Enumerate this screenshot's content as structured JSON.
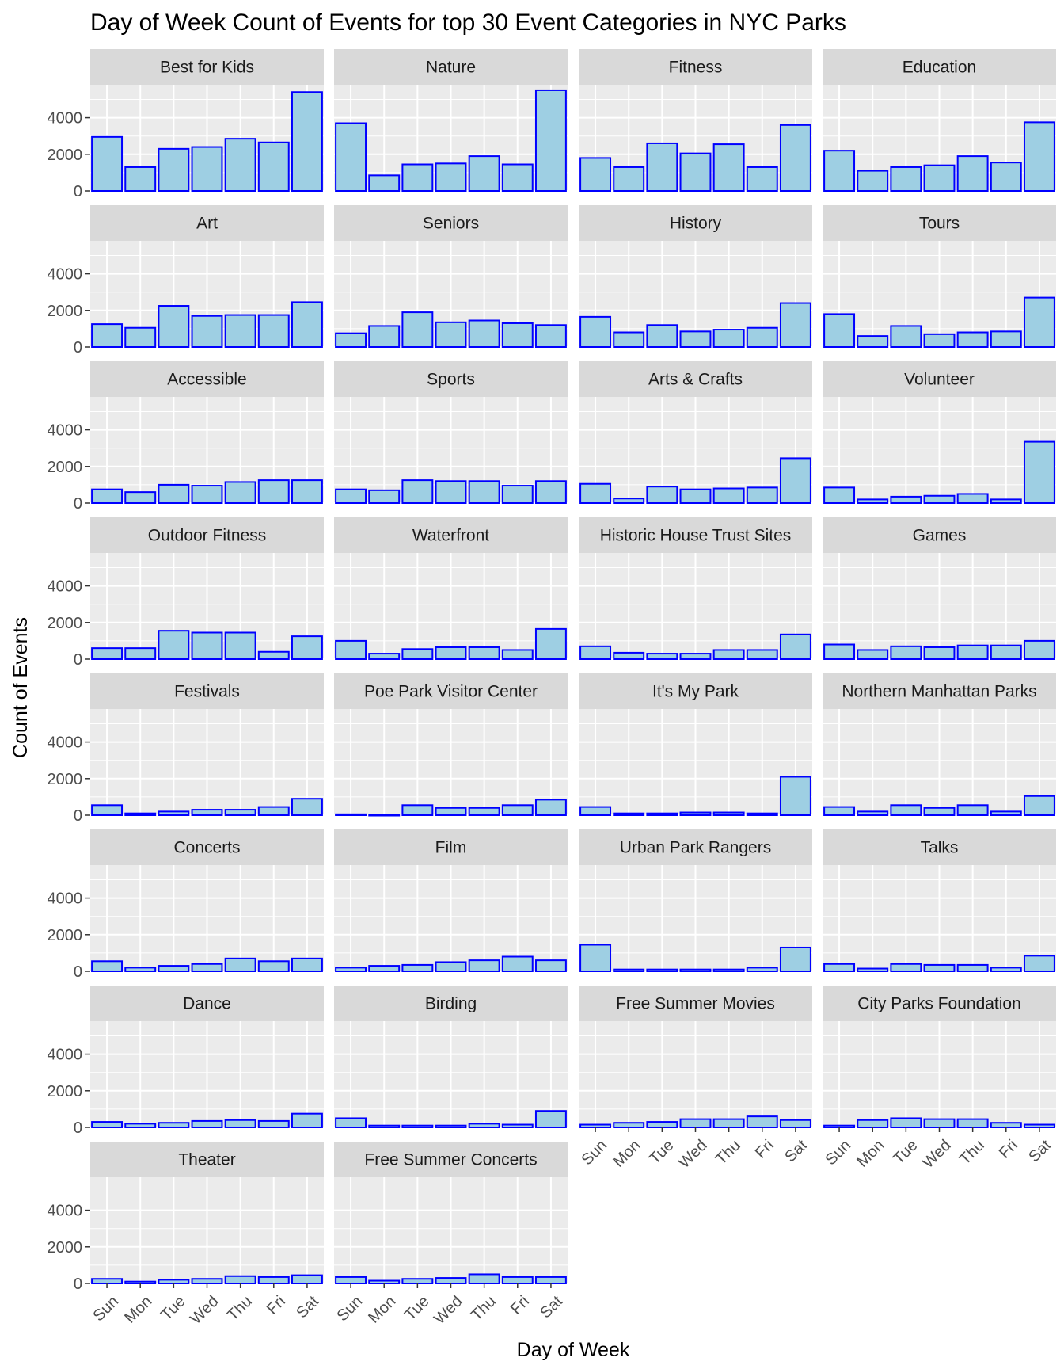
{
  "colors": {
    "panel_bg": "#EBEBEB",
    "grid": "#FFFFFF",
    "strip_bg": "#D9D9D9",
    "bar_fill": "#9ECFE3",
    "bar_outline": "#0000FF",
    "tick_text": "#4D4D4D"
  },
  "chart_data": {
    "type": "bar",
    "faceted": true,
    "facet_columns": 4,
    "title": "Day of Week Count of Events for top 30 Event Categories in NYC Parks",
    "xlabel": "Day of Week",
    "ylabel": "Count of Events",
    "categories": [
      "Sun",
      "Mon",
      "Tue",
      "Wed",
      "Thu",
      "Fri",
      "Sat"
    ],
    "ylim": [
      0,
      5800
    ],
    "yticks": [
      0,
      2000,
      4000
    ],
    "grid": true,
    "facets": [
      {
        "name": "Best for Kids",
        "values": [
          2950,
          1300,
          2300,
          2400,
          2850,
          2650,
          5400
        ]
      },
      {
        "name": "Nature",
        "values": [
          3700,
          850,
          1450,
          1500,
          1900,
          1450,
          5500
        ]
      },
      {
        "name": "Fitness",
        "values": [
          1800,
          1300,
          2600,
          2050,
          2550,
          1300,
          3600
        ]
      },
      {
        "name": "Education",
        "values": [
          2200,
          1100,
          1300,
          1400,
          1900,
          1550,
          3750
        ]
      },
      {
        "name": "Art",
        "values": [
          1250,
          1050,
          2250,
          1700,
          1750,
          1750,
          2450
        ]
      },
      {
        "name": "Seniors",
        "values": [
          750,
          1150,
          1900,
          1350,
          1450,
          1300,
          1200
        ]
      },
      {
        "name": "History",
        "values": [
          1650,
          800,
          1200,
          850,
          950,
          1050,
          2400
        ]
      },
      {
        "name": "Tours",
        "values": [
          1800,
          600,
          1150,
          700,
          800,
          850,
          2700
        ]
      },
      {
        "name": "Accessible",
        "values": [
          750,
          600,
          1000,
          950,
          1150,
          1250,
          1250
        ]
      },
      {
        "name": "Sports",
        "values": [
          750,
          700,
          1250,
          1200,
          1200,
          950,
          1200
        ]
      },
      {
        "name": "Arts & Crafts",
        "values": [
          1050,
          250,
          900,
          750,
          800,
          850,
          2450
        ]
      },
      {
        "name": "Volunteer",
        "values": [
          850,
          200,
          350,
          400,
          500,
          200,
          3350
        ]
      },
      {
        "name": "Outdoor Fitness",
        "values": [
          600,
          600,
          1550,
          1450,
          1450,
          400,
          1250
        ]
      },
      {
        "name": "Waterfront",
        "values": [
          1000,
          300,
          550,
          650,
          650,
          500,
          1650
        ]
      },
      {
        "name": "Historic House Trust Sites",
        "values": [
          700,
          350,
          300,
          300,
          500,
          500,
          1350
        ]
      },
      {
        "name": "Games",
        "values": [
          800,
          500,
          700,
          650,
          750,
          750,
          1000
        ]
      },
      {
        "name": "Festivals",
        "values": [
          550,
          100,
          200,
          300,
          300,
          450,
          900
        ]
      },
      {
        "name": "Poe Park Visitor Center",
        "values": [
          50,
          0,
          550,
          400,
          400,
          550,
          850
        ]
      },
      {
        "name": "It's My Park",
        "values": [
          450,
          100,
          100,
          150,
          150,
          100,
          2100
        ]
      },
      {
        "name": "Northern Manhattan Parks",
        "values": [
          450,
          200,
          550,
          400,
          550,
          200,
          1050
        ]
      },
      {
        "name": "Concerts",
        "values": [
          550,
          200,
          300,
          400,
          700,
          550,
          700
        ]
      },
      {
        "name": "Film",
        "values": [
          200,
          300,
          350,
          500,
          600,
          800,
          600
        ]
      },
      {
        "name": "Urban Park Rangers",
        "values": [
          1450,
          100,
          100,
          100,
          100,
          200,
          1300
        ]
      },
      {
        "name": "Talks",
        "values": [
          400,
          150,
          400,
          350,
          350,
          200,
          850
        ]
      },
      {
        "name": "Dance",
        "values": [
          300,
          200,
          250,
          350,
          400,
          350,
          750
        ]
      },
      {
        "name": "Birding",
        "values": [
          500,
          100,
          100,
          100,
          200,
          150,
          900
        ]
      },
      {
        "name": "Free Summer Movies",
        "values": [
          150,
          250,
          300,
          450,
          450,
          600,
          400
        ]
      },
      {
        "name": "City Parks Foundation",
        "values": [
          100,
          400,
          500,
          450,
          450,
          250,
          150
        ]
      },
      {
        "name": "Theater",
        "values": [
          250,
          100,
          200,
          250,
          400,
          350,
          450
        ]
      },
      {
        "name": "Free Summer Concerts",
        "values": [
          350,
          150,
          250,
          300,
          500,
          350,
          350
        ]
      }
    ]
  }
}
